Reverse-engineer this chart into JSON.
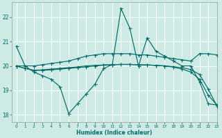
{
  "xlabel": "Humidex (Indice chaleur)",
  "bg_color": "#ceeae4",
  "grid_color": "#ffffff",
  "line_color": "#006b6b",
  "xlim": [
    -0.5,
    23
  ],
  "ylim": [
    17.7,
    22.6
  ],
  "yticks": [
    18,
    19,
    20,
    21,
    22
  ],
  "xticks": [
    0,
    1,
    2,
    3,
    4,
    5,
    6,
    7,
    8,
    9,
    10,
    11,
    12,
    13,
    14,
    15,
    16,
    17,
    18,
    19,
    20,
    21,
    22,
    23
  ],
  "line1_x": [
    0,
    1,
    2,
    3,
    4,
    5,
    6,
    7,
    8,
    9,
    10,
    11,
    12,
    13,
    14,
    15,
    16,
    17,
    18,
    19,
    20,
    21,
    22,
    23
  ],
  "line1_y": [
    20.8,
    20.0,
    19.75,
    19.6,
    19.45,
    19.15,
    18.05,
    18.45,
    18.85,
    19.25,
    19.9,
    20.05,
    22.35,
    21.55,
    20.0,
    21.15,
    20.6,
    20.4,
    20.2,
    20.0,
    20.0,
    19.35,
    18.45,
    18.4
  ],
  "line2_x": [
    0,
    1,
    2,
    3,
    4,
    5,
    6,
    7,
    8,
    9,
    10,
    11,
    12,
    13,
    14,
    15,
    16,
    17,
    18,
    19,
    20,
    21,
    22,
    23
  ],
  "line2_y": [
    20.0,
    20.0,
    20.0,
    20.05,
    20.1,
    20.15,
    20.2,
    20.3,
    20.4,
    20.45,
    20.5,
    20.5,
    20.5,
    20.5,
    20.45,
    20.45,
    20.4,
    20.35,
    20.3,
    20.25,
    20.2,
    20.5,
    20.5,
    20.45
  ],
  "line3_x": [
    0,
    1,
    2,
    3,
    4,
    5,
    6,
    7,
    8,
    9,
    10,
    11,
    12,
    13,
    14,
    15,
    16,
    17,
    18,
    19,
    20,
    21,
    22,
    23
  ],
  "line3_y": [
    20.0,
    19.9,
    19.82,
    19.82,
    19.84,
    19.87,
    19.9,
    19.93,
    19.96,
    20.0,
    20.03,
    20.05,
    20.06,
    20.06,
    20.05,
    20.04,
    20.02,
    20.0,
    19.97,
    19.93,
    19.85,
    19.65,
    19.05,
    18.35
  ],
  "line4_x": [
    0,
    1,
    2,
    3,
    4,
    5,
    6,
    7,
    8,
    9,
    10,
    11,
    12,
    13,
    14,
    15,
    16,
    17,
    18,
    19,
    20,
    21,
    22,
    23
  ],
  "line4_y": [
    20.0,
    19.9,
    19.82,
    19.84,
    19.87,
    19.9,
    19.93,
    19.96,
    20.0,
    20.02,
    20.04,
    20.05,
    20.06,
    20.06,
    20.04,
    20.04,
    20.02,
    20.0,
    19.95,
    19.87,
    19.75,
    19.45,
    18.8,
    18.4
  ]
}
